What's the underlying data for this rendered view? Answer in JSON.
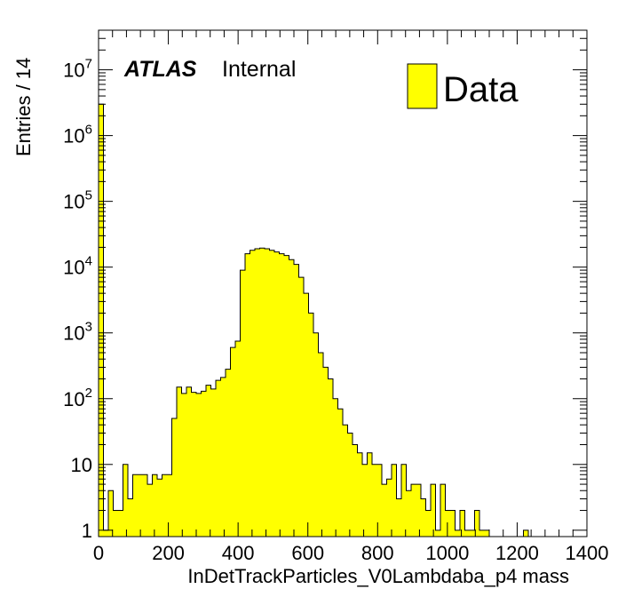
{
  "chart_data": {
    "type": "bar",
    "style": "histogram",
    "xlabel": "InDetTrackParticles_V0Lambdaba_p4 mass",
    "ylabel": "Entries / 14",
    "xlim": [
      0,
      1400
    ],
    "ylim": [
      0.8,
      40000000
    ],
    "yscale": "log",
    "bin_width": 14,
    "x_ticks": [
      "0",
      "200",
      "400",
      "600",
      "800",
      "1000",
      "1200",
      "1400"
    ],
    "y_ticks": [
      {
        "value": 1,
        "label": "1"
      },
      {
        "value": 10,
        "label": "10"
      },
      {
        "value": 100,
        "base": "10",
        "exp": "2"
      },
      {
        "value": 1000,
        "base": "10",
        "exp": "3"
      },
      {
        "value": 10000,
        "base": "10",
        "exp": "4"
      },
      {
        "value": 100000,
        "base": "10",
        "exp": "5"
      },
      {
        "value": 1000000,
        "base": "10",
        "exp": "6"
      },
      {
        "value": 10000000,
        "base": "10",
        "exp": "7"
      }
    ],
    "annotation": {
      "atlas": "ATLAS",
      "label": "Internal"
    },
    "legend": {
      "position": "top-right",
      "entries": [
        {
          "name": "Data",
          "color": "#ffff00"
        }
      ]
    },
    "series": [
      {
        "name": "Data",
        "color": "#ffff00",
        "edge_color": "#000000",
        "values": [
          3000000,
          1,
          4,
          2,
          2,
          10,
          3,
          7,
          7,
          7,
          5,
          7,
          6,
          7,
          7,
          50,
          150,
          120,
          150,
          125,
          120,
          130,
          160,
          140,
          190,
          210,
          280,
          600,
          750,
          9000,
          16000,
          18000,
          19000,
          19500,
          19000,
          18000,
          17000,
          16000,
          15000,
          13000,
          11000,
          7000,
          4000,
          2000,
          1000,
          500,
          300,
          200,
          100,
          70,
          40,
          30,
          20,
          15,
          10,
          15,
          10,
          10,
          5,
          6,
          10,
          3,
          10,
          4,
          5,
          5,
          3,
          2,
          5,
          1,
          5,
          2,
          2,
          1,
          2,
          1,
          1,
          2,
          1,
          1,
          0,
          0,
          0,
          0,
          0,
          0,
          0,
          1,
          0,
          0,
          0,
          0,
          0,
          0,
          0,
          0,
          0,
          0,
          0,
          0
        ]
      }
    ]
  }
}
